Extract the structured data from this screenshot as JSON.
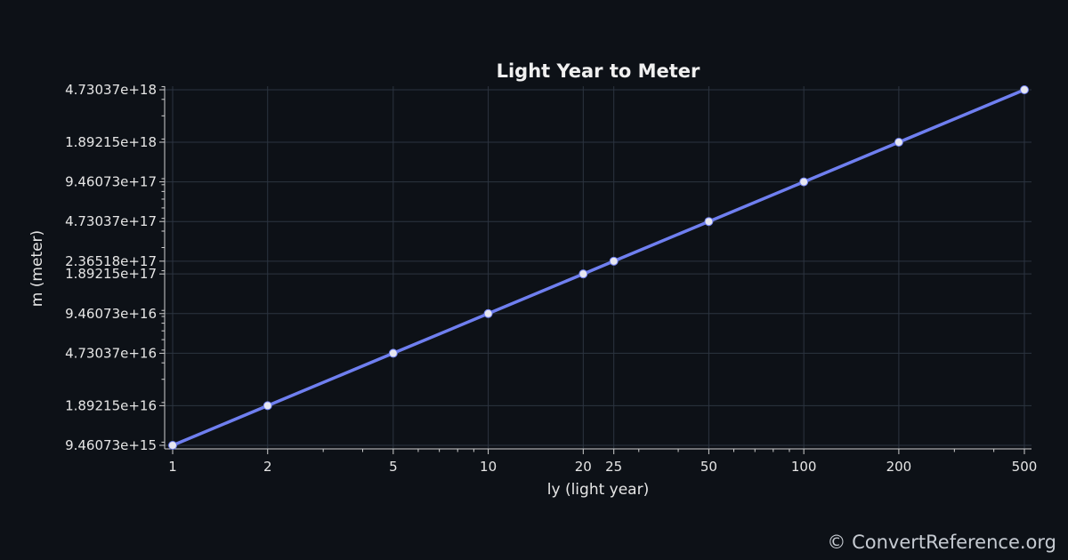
{
  "chart_data": {
    "type": "line",
    "title": "Light Year to Meter",
    "xlabel": "ly (light year)",
    "ylabel": "m (meter)",
    "x_scale": "log",
    "y_scale": "log",
    "grid": true,
    "colors": {
      "line": "#6f7ff0",
      "marker": "#e6e6f0",
      "background": "#0d1117"
    },
    "x_ticks": [
      {
        "value": 1,
        "label": "1"
      },
      {
        "value": 2,
        "label": "2"
      },
      {
        "value": 5,
        "label": "5"
      },
      {
        "value": 10,
        "label": "10"
      },
      {
        "value": 20,
        "label": "20"
      },
      {
        "value": 25,
        "label": "25"
      },
      {
        "value": 50,
        "label": "50"
      },
      {
        "value": 100,
        "label": "100"
      },
      {
        "value": 200,
        "label": "200"
      },
      {
        "value": 500,
        "label": "500"
      }
    ],
    "y_ticks": [
      {
        "value": 9460730000000000.0,
        "label": "9.46073e+15"
      },
      {
        "value": 1.89215e+16,
        "label": "1.89215e+16"
      },
      {
        "value": 4.73037e+16,
        "label": "4.73037e+16"
      },
      {
        "value": 9.46073e+16,
        "label": "9.46073e+16"
      },
      {
        "value": 1.89215e+17,
        "label": "1.89215e+17"
      },
      {
        "value": 2.36518e+17,
        "label": "2.36518e+17"
      },
      {
        "value": 4.73037e+17,
        "label": "4.73037e+17"
      },
      {
        "value": 9.46073e+17,
        "label": "9.46073e+17"
      },
      {
        "value": 1.89215e+18,
        "label": "1.89215e+18"
      },
      {
        "value": 4.73037e+18,
        "label": "4.73037e+18"
      }
    ],
    "series": [
      {
        "x": [
          1,
          2,
          5,
          10,
          20,
          25,
          50,
          100,
          200,
          500
        ],
        "y": [
          9460730000000000.0,
          1.89215e+16,
          4.73037e+16,
          9.46073e+16,
          1.89215e+17,
          2.36518e+17,
          4.73037e+17,
          9.46073e+17,
          1.89215e+18,
          4.73037e+18
        ]
      }
    ]
  },
  "watermark": "© ConvertReference.org"
}
